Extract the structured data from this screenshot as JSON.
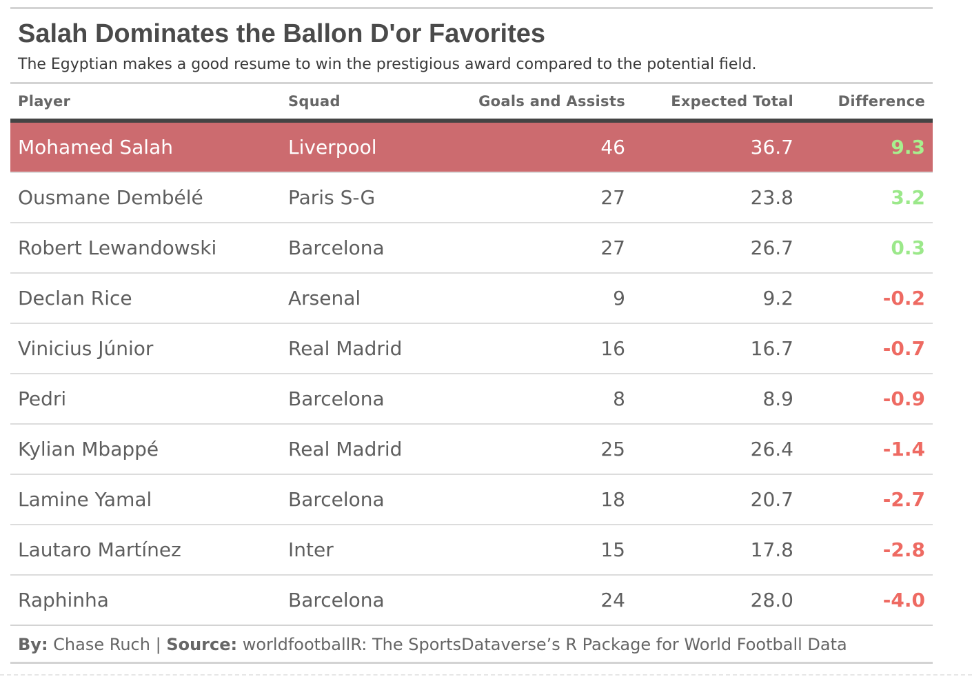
{
  "chart_data": {
    "type": "table",
    "title": "Salah Dominates the Ballon D'or Favorites",
    "subtitle": "The Egyptian makes a good resume to win the prestigious award compared to the potential field.",
    "columns": [
      "Player",
      "Squad",
      "Goals and Assists",
      "Expected Total",
      "Difference"
    ],
    "rows": [
      {
        "player": "Mohamed Salah",
        "squad": "Liverpool",
        "goals_assists": "46",
        "expected_total": "36.7",
        "difference": "9.3"
      },
      {
        "player": "Ousmane Dembélé",
        "squad": "Paris S-G",
        "goals_assists": "27",
        "expected_total": "23.8",
        "difference": "3.2"
      },
      {
        "player": "Robert Lewandowski",
        "squad": "Barcelona",
        "goals_assists": "27",
        "expected_total": "26.7",
        "difference": "0.3"
      },
      {
        "player": "Declan Rice",
        "squad": "Arsenal",
        "goals_assists": "9",
        "expected_total": "9.2",
        "difference": "-0.2"
      },
      {
        "player": "Vinicius Júnior",
        "squad": "Real Madrid",
        "goals_assists": "16",
        "expected_total": "16.7",
        "difference": "-0.7"
      },
      {
        "player": "Pedri",
        "squad": "Barcelona",
        "goals_assists": "8",
        "expected_total": "8.9",
        "difference": "-0.9"
      },
      {
        "player": "Kylian Mbappé",
        "squad": "Real Madrid",
        "goals_assists": "25",
        "expected_total": "26.4",
        "difference": "-1.4"
      },
      {
        "player": "Lamine Yamal",
        "squad": "Barcelona",
        "goals_assists": "18",
        "expected_total": "20.7",
        "difference": "-2.7"
      },
      {
        "player": "Lautaro Martínez",
        "squad": "Inter",
        "goals_assists": "15",
        "expected_total": "17.8",
        "difference": "-2.8"
      },
      {
        "player": "Raphinha",
        "squad": "Barcelona",
        "goals_assists": "24",
        "expected_total": "28.0",
        "difference": "-4.0"
      }
    ],
    "highlight_row": 0,
    "colors": {
      "highlight_bg": "#cc6b6f",
      "positive": "#9be88a",
      "negative": "#ee6a62"
    }
  },
  "footer": {
    "by_label": "By:",
    "by_value": " Chase Ruch | ",
    "source_label": "Source:",
    "source_value": " worldfootballR: The SportsDataverse’s R Package for World Football Data"
  }
}
